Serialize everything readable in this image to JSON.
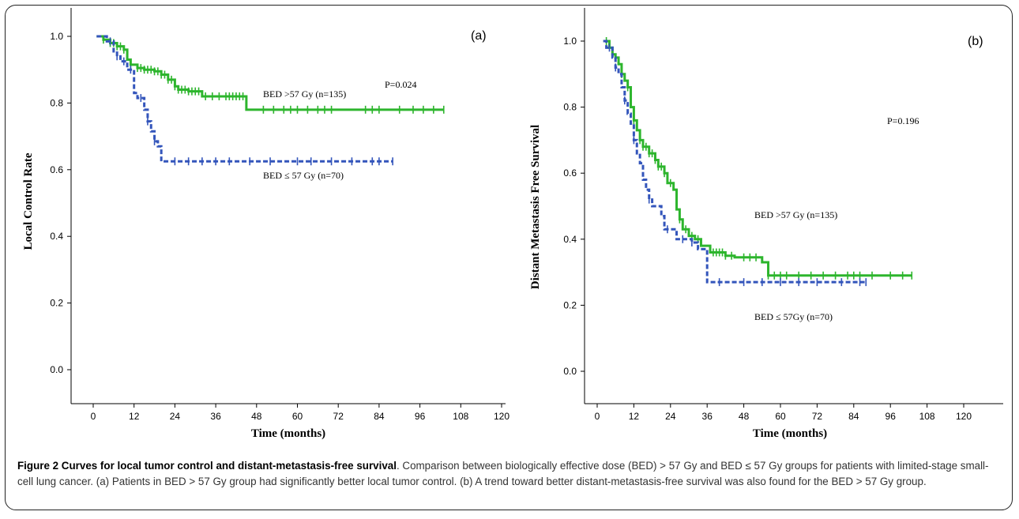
{
  "chart_data": [
    {
      "type": "line",
      "panel_label": "(a)",
      "xlabel": "Time (months)",
      "ylabel": "Local Control Rate",
      "xlim": [
        0,
        120
      ],
      "ylim": [
        0,
        1.0
      ],
      "xticks": [
        0,
        12,
        24,
        36,
        48,
        60,
        72,
        84,
        96,
        108,
        120
      ],
      "xtick_labels": [
        "0",
        "12",
        "24",
        "36",
        "48",
        "60",
        "72",
        "84",
        "96",
        "108",
        "120"
      ],
      "yticks": [
        0.0,
        0.2,
        0.4,
        0.6,
        0.8,
        1.0
      ],
      "ytick_labels": [
        "0.0",
        "0.2",
        "0.4",
        "0.6",
        "0.8",
        "1.0"
      ],
      "p_value": "P=0.024",
      "series": [
        {
          "name": "BED >57 Gy (n=135)",
          "color": "#2db52d",
          "style": "solid",
          "steps": [
            [
              1,
              1.0
            ],
            [
              3,
              0.99
            ],
            [
              5,
              0.98
            ],
            [
              7,
              0.97
            ],
            [
              9,
              0.96
            ],
            [
              10,
              0.93
            ],
            [
              11,
              0.915
            ],
            [
              13,
              0.905
            ],
            [
              15,
              0.9
            ],
            [
              18,
              0.895
            ],
            [
              20,
              0.885
            ],
            [
              22,
              0.87
            ],
            [
              24,
              0.85
            ],
            [
              25,
              0.84
            ],
            [
              28,
              0.835
            ],
            [
              32,
              0.82
            ],
            [
              40,
              0.82
            ],
            [
              45,
              0.78
            ],
            [
              103,
              0.78
            ]
          ],
          "censor_x": [
            3,
            5,
            6,
            7,
            8,
            9,
            11,
            13,
            14,
            15,
            16,
            17,
            18,
            19,
            20,
            21,
            22,
            23,
            24,
            25,
            26,
            27,
            28,
            29,
            30,
            31,
            33,
            35,
            37,
            39,
            40,
            41,
            42,
            43,
            44,
            50,
            53,
            56,
            58,
            60,
            63,
            66,
            68,
            70,
            80,
            82,
            84,
            90,
            94,
            97,
            100,
            103
          ]
        },
        {
          "name": "BED ≤ 57 Gy (n=70)",
          "color": "#3355bb",
          "style": "dashed",
          "steps": [
            [
              1,
              1.0
            ],
            [
              4,
              0.985
            ],
            [
              6,
              0.955
            ],
            [
              7,
              0.94
            ],
            [
              8,
              0.925
            ],
            [
              10,
              0.9
            ],
            [
              12,
              0.83
            ],
            [
              13,
              0.815
            ],
            [
              15,
              0.78
            ],
            [
              16,
              0.745
            ],
            [
              17,
              0.715
            ],
            [
              18,
              0.685
            ],
            [
              19,
              0.67
            ],
            [
              20,
              0.625
            ],
            [
              88,
              0.625
            ]
          ],
          "censor_x": [
            5,
            7,
            9,
            11,
            14,
            16,
            18,
            24,
            28,
            32,
            36,
            40,
            46,
            52,
            60,
            64,
            70,
            76,
            82,
            84,
            88
          ]
        }
      ],
      "annotations": [
        "BED >57 Gy (n=135)",
        "BED ≤ 57 Gy (n=70)"
      ]
    },
    {
      "type": "line",
      "panel_label": "(b)",
      "xlabel": "Time (months)",
      "ylabel": "Distant Metastasis Free Survival",
      "xlim": [
        0,
        120
      ],
      "ylim": [
        0,
        1.0
      ],
      "xticks": [
        0,
        12,
        24,
        36,
        48,
        60,
        72,
        84,
        96,
        108,
        120
      ],
      "xtick_labels": [
        "0",
        "12",
        "24",
        "36",
        "48",
        "60",
        "72",
        "84",
        "96",
        "108",
        "120"
      ],
      "yticks": [
        0.0,
        0.2,
        0.4,
        0.6,
        0.8,
        1.0
      ],
      "ytick_labels": [
        "0.0",
        "0.2",
        "0.4",
        "0.6",
        "0.8",
        "1.0"
      ],
      "p_value": "P=0.196",
      "series": [
        {
          "name": "BED >57 Gy (n=135)",
          "color": "#2db52d",
          "style": "solid",
          "steps": [
            [
              2,
              1.0
            ],
            [
              4,
              0.98
            ],
            [
              5,
              0.96
            ],
            [
              6,
              0.95
            ],
            [
              7,
              0.93
            ],
            [
              8,
              0.9
            ],
            [
              9,
              0.88
            ],
            [
              10,
              0.86
            ],
            [
              11,
              0.8
            ],
            [
              12,
              0.76
            ],
            [
              13,
              0.73
            ],
            [
              14,
              0.7
            ],
            [
              15,
              0.68
            ],
            [
              17,
              0.66
            ],
            [
              19,
              0.64
            ],
            [
              20,
              0.62
            ],
            [
              22,
              0.6
            ],
            [
              23,
              0.57
            ],
            [
              25,
              0.55
            ],
            [
              26,
              0.49
            ],
            [
              27,
              0.46
            ],
            [
              28,
              0.43
            ],
            [
              30,
              0.41
            ],
            [
              32,
              0.4
            ],
            [
              34,
              0.38
            ],
            [
              37,
              0.36
            ],
            [
              42,
              0.35
            ],
            [
              45,
              0.345
            ],
            [
              54,
              0.33
            ],
            [
              56,
              0.29
            ],
            [
              103,
              0.29
            ]
          ],
          "censor_x": [
            3,
            5,
            6,
            8,
            10,
            12,
            14,
            15,
            16,
            17,
            18,
            19,
            20,
            21,
            22,
            24,
            27,
            29,
            31,
            33,
            38,
            39,
            40,
            41,
            42,
            44,
            48,
            50,
            52,
            56,
            58,
            60,
            62,
            66,
            70,
            74,
            78,
            82,
            84,
            86,
            90,
            96,
            100,
            103
          ]
        },
        {
          "name": "BED ≤ 57Gy (n=70)",
          "color": "#3355bb",
          "style": "dashed",
          "steps": [
            [
              2,
              1.0
            ],
            [
              3,
              0.98
            ],
            [
              5,
              0.95
            ],
            [
              6,
              0.92
            ],
            [
              7,
              0.9
            ],
            [
              8,
              0.86
            ],
            [
              9,
              0.82
            ],
            [
              10,
              0.78
            ],
            [
              11,
              0.75
            ],
            [
              12,
              0.7
            ],
            [
              13,
              0.66
            ],
            [
              14,
              0.63
            ],
            [
              15,
              0.58
            ],
            [
              16,
              0.55
            ],
            [
              17,
              0.52
            ],
            [
              18,
              0.5
            ],
            [
              21,
              0.47
            ],
            [
              22,
              0.43
            ],
            [
              26,
              0.4
            ],
            [
              31,
              0.39
            ],
            [
              33,
              0.37
            ],
            [
              36,
              0.27
            ],
            [
              88,
              0.27
            ]
          ],
          "censor_x": [
            4,
            6,
            9,
            12,
            17,
            23,
            28,
            31,
            40,
            48,
            54,
            60,
            66,
            72,
            80,
            86,
            88
          ]
        }
      ],
      "annotations": [
        "BED >57 Gy (n=135)",
        "BED ≤ 57Gy (n=70)"
      ]
    }
  ],
  "caption": {
    "title": "Figure 2 Curves for local tumor control and distant-metastasis-free survival",
    "text": ". Comparison between biologically effective dose (BED) > 57 Gy and BED ≤ 57 Gy groups for patients with limited-stage small-cell lung cancer. (a) Patients in BED > 57 Gy group had significantly better local tumor control. (b) A trend toward better distant-metastasis-free survival was also found for the BED > 57 Gy group."
  }
}
